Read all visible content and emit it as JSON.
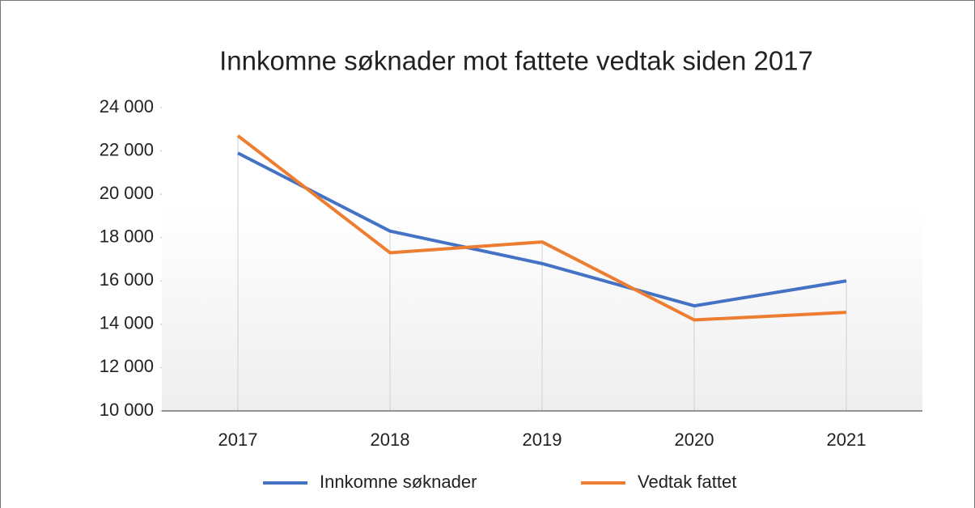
{
  "chart_data": {
    "type": "line",
    "title": "Innkomne søknader mot fattete vedtak siden 2017",
    "categories": [
      "2017",
      "2018",
      "2019",
      "2020",
      "2021"
    ],
    "series": [
      {
        "name": "Innkomne søknader",
        "color": "#4472c4",
        "values": [
          21900,
          18300,
          16800,
          14850,
          16000
        ]
      },
      {
        "name": "Vedtak fattet",
        "color": "#ed7d31",
        "values": [
          22700,
          17300,
          17800,
          14200,
          14550
        ]
      }
    ],
    "ylim": [
      10000,
      24000
    ],
    "yticks": [
      {
        "value": 10000,
        "label": "10 000"
      },
      {
        "value": 12000,
        "label": "12 000"
      },
      {
        "value": 14000,
        "label": "14 000"
      },
      {
        "value": 16000,
        "label": "16 000"
      },
      {
        "value": 18000,
        "label": "18 000"
      },
      {
        "value": 20000,
        "label": "20 000"
      },
      {
        "value": 22000,
        "label": "22 000"
      },
      {
        "value": 24000,
        "label": "24 000"
      }
    ],
    "drop_lines": true,
    "legend": "bottom"
  }
}
